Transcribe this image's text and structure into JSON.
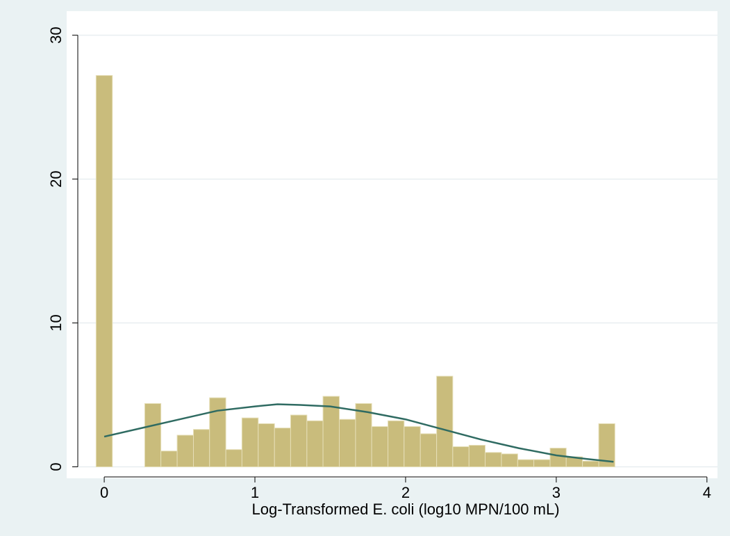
{
  "chart_data": {
    "type": "histogram",
    "x_label": "Log-Transformed E. coli (log10 MPN/100 mL)",
    "bins": [
      -0.054,
      0.054,
      0.161,
      0.269,
      0.376,
      0.484,
      0.592,
      0.699,
      0.807,
      0.914,
      1.022,
      1.13,
      1.237,
      1.345,
      1.452,
      1.56,
      1.668,
      1.775,
      1.883,
      1.99,
      2.098,
      2.206,
      2.313,
      2.421,
      2.528,
      2.636,
      2.744,
      2.851,
      2.959,
      3.066,
      3.174,
      3.282,
      3.389
    ],
    "values": [
      27.2,
      0,
      0,
      4.4,
      1.1,
      2.2,
      2.6,
      4.8,
      1.2,
      3.4,
      3.0,
      2.7,
      3.6,
      3.2,
      4.9,
      3.3,
      4.4,
      2.8,
      3.2,
      2.8,
      2.3,
      6.3,
      1.4,
      1.5,
      1.0,
      0.9,
      0.5,
      0.5,
      1.3,
      0.7,
      0.4,
      3.0
    ],
    "color": "#c9bc7c",
    "density": {
      "x": [
        0,
        0.25,
        0.5,
        0.75,
        1.0,
        1.15,
        1.3,
        1.5,
        1.75,
        2.0,
        2.25,
        2.5,
        2.75,
        3.0,
        3.2,
        3.38
      ],
      "values": [
        2.1,
        2.7,
        3.3,
        3.9,
        4.2,
        4.35,
        4.3,
        4.2,
        3.8,
        3.3,
        2.6,
        1.9,
        1.3,
        0.8,
        0.55,
        0.35
      ],
      "color": "#2f6b62"
    },
    "xlim": [
      -0.24,
      4.07
    ],
    "ylim": [
      -0.7,
      30.9
    ],
    "xticks": [
      0,
      1,
      2,
      3,
      4
    ],
    "yticks": [
      0,
      10,
      20,
      30
    ],
    "grid": true
  }
}
